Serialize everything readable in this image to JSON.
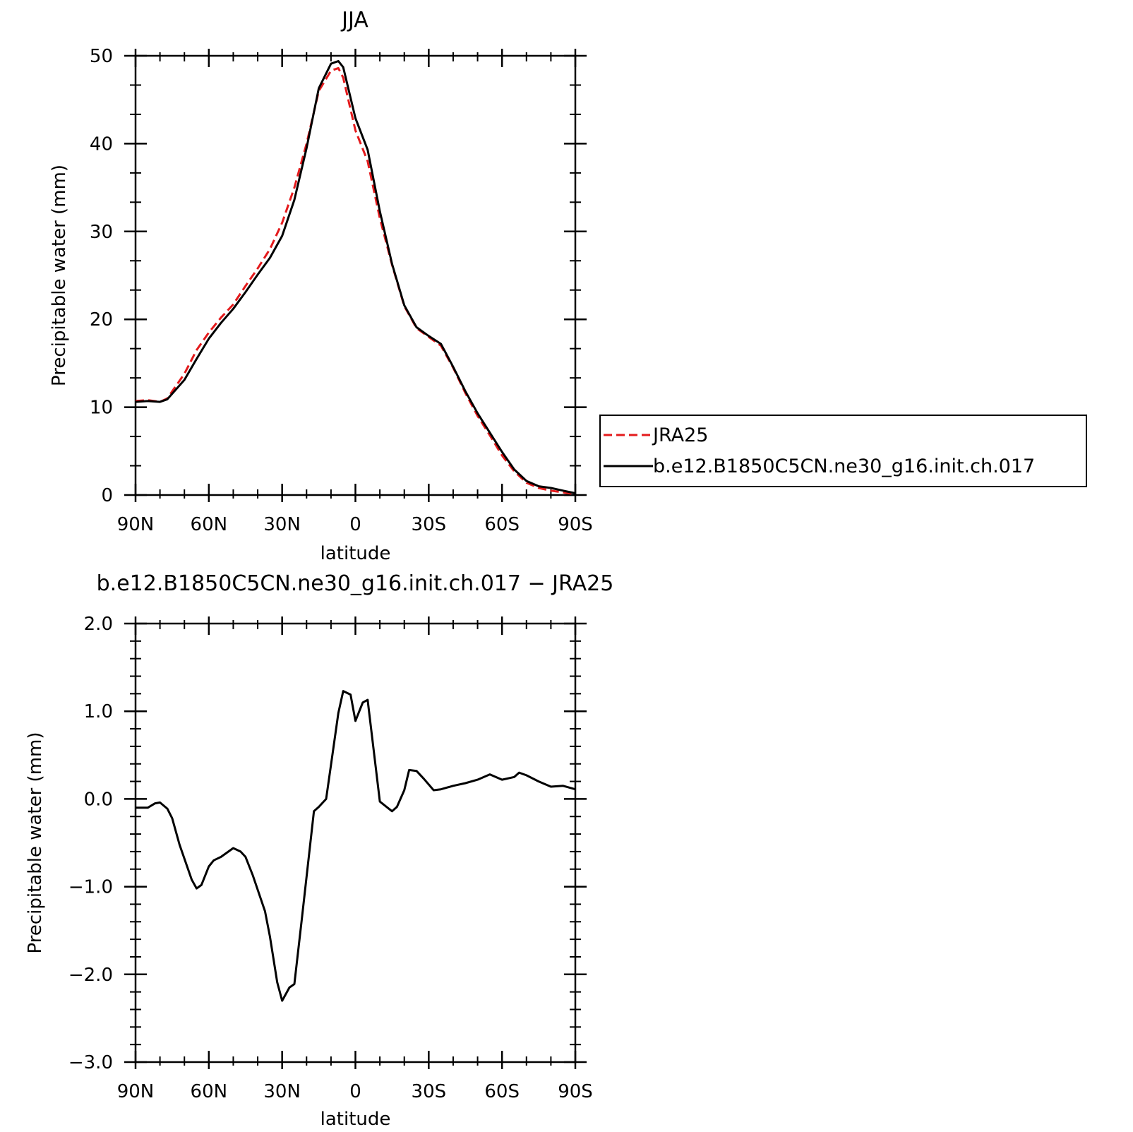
{
  "chart_data": [
    {
      "type": "line",
      "title": "JJA",
      "xlabel": "latitude",
      "ylabel": "Precipitable water (mm)",
      "xlim": [
        90,
        -90
      ],
      "ylim": [
        0,
        50
      ],
      "x_ticks": [
        90,
        60,
        30,
        0,
        -30,
        -60,
        -90
      ],
      "x_tick_labels": [
        "90N",
        "60N",
        "30N",
        "0",
        "30S",
        "60S",
        "90S"
      ],
      "y_ticks": [
        0,
        10,
        20,
        30,
        40,
        50
      ],
      "y_tick_labels": [
        "0",
        "10",
        "20",
        "30",
        "40",
        "50"
      ],
      "legend_position": "right",
      "x": [
        90,
        85,
        80,
        77,
        70,
        65,
        60,
        55,
        50,
        45,
        40,
        35,
        30,
        25,
        20,
        15,
        10,
        7,
        5,
        0,
        -5,
        -10,
        -15,
        -20,
        -25,
        -30,
        -35,
        -40,
        -45,
        -50,
        -55,
        -60,
        -65,
        -70,
        -75,
        -80,
        -85,
        -90
      ],
      "series": [
        {
          "name": "JRA25",
          "color": "#e41a1c",
          "dash": "dashed",
          "values": [
            10.7,
            10.8,
            10.6,
            11.0,
            13.8,
            16.5,
            18.5,
            20.2,
            21.7,
            23.8,
            25.8,
            28.0,
            31.0,
            35.0,
            40.0,
            46.0,
            48.3,
            48.6,
            47.5,
            41.5,
            38.0,
            31.5,
            26.2,
            21.5,
            19.0,
            18.0,
            17.0,
            14.5,
            11.6,
            9.0,
            6.8,
            4.5,
            2.7,
            1.4,
            0.8,
            0.5,
            0.3,
            0.1
          ]
        },
        {
          "name": "b.e12.B1850C5CN.ne30_g16.init.ch.017",
          "color": "#000000",
          "dash": "solid",
          "values": [
            10.6,
            10.7,
            10.6,
            10.9,
            13.1,
            15.5,
            17.8,
            19.6,
            21.2,
            23.1,
            25.1,
            27.0,
            29.5,
            33.6,
            39.5,
            46.3,
            49.1,
            49.4,
            48.7,
            42.9,
            39.3,
            32.3,
            26.3,
            21.6,
            19.1,
            18.1,
            17.2,
            14.6,
            11.8,
            9.3,
            7.1,
            4.9,
            2.9,
            1.6,
            1.0,
            0.8,
            0.5,
            0.2
          ]
        }
      ]
    },
    {
      "type": "line",
      "title": "b.e12.B1850C5CN.ne30_g16.init.ch.017 − JRA25",
      "xlabel": "latitude",
      "ylabel": "Precipitable water (mm)",
      "xlim": [
        90,
        -90
      ],
      "ylim": [
        -3.0,
        2.0
      ],
      "x_ticks": [
        90,
        60,
        30,
        0,
        -30,
        -60,
        -90
      ],
      "x_tick_labels": [
        "90N",
        "60N",
        "30N",
        "0",
        "30S",
        "60S",
        "90S"
      ],
      "y_ticks": [
        -3.0,
        -2.0,
        -1.0,
        0.0,
        1.0,
        2.0
      ],
      "y_tick_labels": [
        "−3.0",
        "−2.0",
        "−1.0",
        "0.0",
        "1.0",
        "2.0"
      ],
      "x": [
        90,
        85,
        82,
        80,
        77,
        75,
        72,
        67,
        65,
        63,
        60,
        58,
        55,
        50,
        47,
        45,
        42,
        37,
        35,
        32,
        30,
        27,
        25,
        22,
        17,
        15,
        12,
        10,
        7,
        5,
        2,
        0,
        -3,
        -5,
        -10,
        -15,
        -17,
        -20,
        -22,
        -25,
        -28,
        -32,
        -35,
        -40,
        -45,
        -50,
        -55,
        -60,
        -65,
        -67,
        -70,
        -75,
        -80,
        -85,
        -90
      ],
      "series": [
        {
          "name": "",
          "color": "#000000",
          "dash": "solid",
          "values": [
            -0.1,
            -0.1,
            -0.05,
            -0.04,
            -0.11,
            -0.22,
            -0.52,
            -0.92,
            -1.02,
            -0.98,
            -0.77,
            -0.7,
            -0.66,
            -0.56,
            -0.6,
            -0.66,
            -0.87,
            -1.28,
            -1.57,
            -2.09,
            -2.3,
            -2.15,
            -2.11,
            -1.38,
            -0.14,
            -0.09,
            0.0,
            0.39,
            0.98,
            1.23,
            1.19,
            0.89,
            1.1,
            1.13,
            -0.03,
            -0.14,
            -0.09,
            0.1,
            0.33,
            0.32,
            0.23,
            0.1,
            0.11,
            0.15,
            0.18,
            0.22,
            0.28,
            0.22,
            0.25,
            0.3,
            0.27,
            0.2,
            0.14,
            0.15,
            0.11
          ]
        }
      ]
    }
  ]
}
